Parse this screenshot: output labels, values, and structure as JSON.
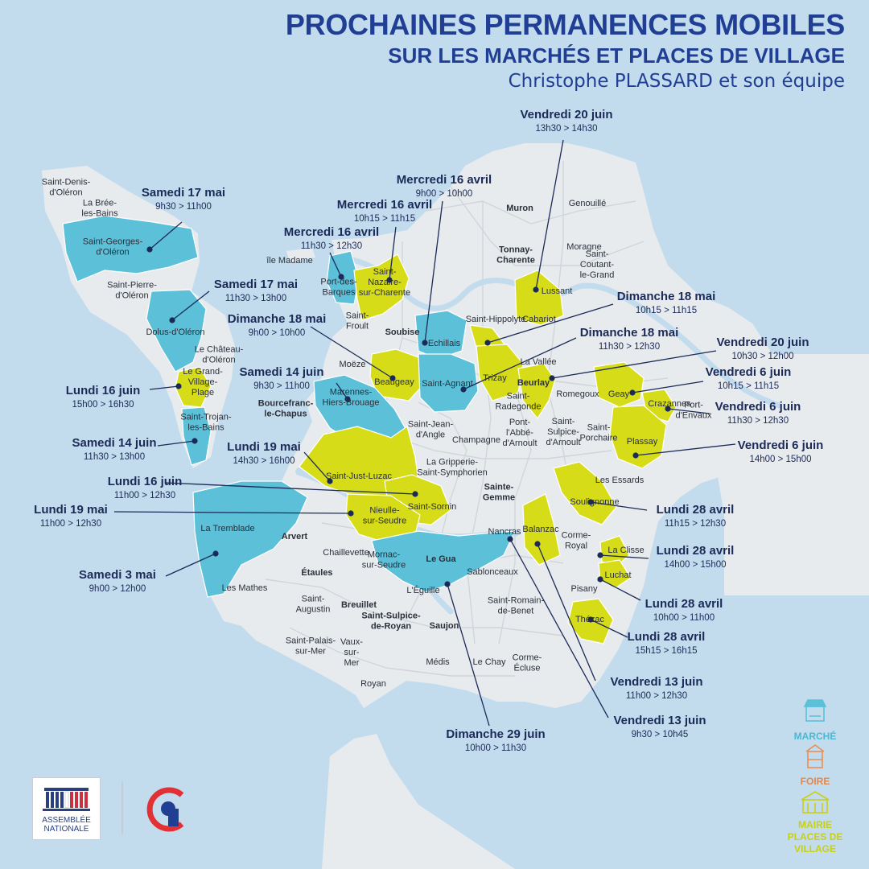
{
  "header": {
    "title": "PROCHAINES PERMANENCES MOBILES",
    "subtitle": "SUR LES MARCHÉS ET PLACES DE VILLAGE",
    "byline": "Christophe PLASSARD et son équipe"
  },
  "colors": {
    "sea": "#c3dced",
    "land": "#e8ebee",
    "commune": "#f1f2f4",
    "marche": "#5bc0d8",
    "mairie": "#d6dc18",
    "foire": "#e98e52",
    "navy": "#1b2a57",
    "river": "#c3dced"
  },
  "legend": [
    {
      "label": "MARCHÉ",
      "icon": "market-stall-icon"
    },
    {
      "label": "FOIRE",
      "icon": "fair-stand-icon"
    },
    {
      "label": "MAIRIE PLACES DE VILLAGE",
      "lines": [
        "MAIRIE",
        "PLACES DE",
        "VILLAGE"
      ],
      "icon": "town-hall-icon"
    }
  ],
  "logos": {
    "assemblee": [
      "ASSEMBLÉE",
      "NATIONALE"
    ],
    "party": "party-logo-icon"
  },
  "places": [
    {
      "lines": [
        "Saint-Denis-",
        "d'Oléron"
      ]
    },
    {
      "lines": [
        "La Brée-",
        "les-Bains"
      ]
    },
    {
      "lines": [
        "Saint-Georges-",
        "d'Oléron"
      ]
    },
    {
      "lines": [
        "Saint-Pierre-",
        "d'Oléron"
      ]
    },
    {
      "lines": [
        "Dolus-d'Oléron"
      ]
    },
    {
      "lines": [
        "Le Château-",
        "d'Oléron"
      ]
    },
    {
      "lines": [
        "Le Grand-",
        "Village-",
        "Plage"
      ]
    },
    {
      "lines": [
        "Saint-Trojan-",
        "les-Bains"
      ]
    },
    {
      "lines": [
        "île Madame"
      ]
    },
    {
      "lines": [
        "Port-des-",
        "Barques"
      ]
    },
    {
      "lines": [
        "Saint-",
        "Nazaire-",
        "sur-Charente"
      ]
    },
    {
      "lines": [
        "Saint-",
        "Froult"
      ]
    },
    {
      "lines": [
        "Soubise"
      ]
    },
    {
      "lines": [
        "Moëze"
      ]
    },
    {
      "lines": [
        "Beaugeay"
      ]
    },
    {
      "lines": [
        "Echillais"
      ]
    },
    {
      "lines": [
        "Saint-Agnant"
      ]
    },
    {
      "lines": [
        "Muron"
      ]
    },
    {
      "lines": [
        "Genouillé"
      ]
    },
    {
      "lines": [
        "Tonnay-",
        "Charente"
      ]
    },
    {
      "lines": [
        "Moragne"
      ]
    },
    {
      "lines": [
        "Saint-",
        "Coutant-",
        "le-Grand"
      ]
    },
    {
      "lines": [
        "Lussant"
      ]
    },
    {
      "lines": [
        "Saint-Hippolyte"
      ]
    },
    {
      "lines": [
        "Cabariot"
      ]
    },
    {
      "lines": [
        "Trizay"
      ]
    },
    {
      "lines": [
        "La Vallée"
      ]
    },
    {
      "lines": [
        "Beurlay"
      ]
    },
    {
      "lines": [
        "Romegoux"
      ]
    },
    {
      "lines": [
        "Geay"
      ]
    },
    {
      "lines": [
        "Crazannes"
      ]
    },
    {
      "lines": [
        "Port-",
        "d'Envaux"
      ]
    },
    {
      "lines": [
        "Plassay"
      ]
    },
    {
      "lines": [
        "Saint-",
        "Porchaire"
      ]
    },
    {
      "lines": [
        "Saint-",
        "Radegonde"
      ]
    },
    {
      "lines": [
        "Bourcefranc-",
        "le-Chapus"
      ]
    },
    {
      "lines": [
        "Marennes-",
        "Hiers-Brouage"
      ]
    },
    {
      "lines": [
        "Saint-Jean-",
        "d'Angle"
      ]
    },
    {
      "lines": [
        "Champagne"
      ]
    },
    {
      "lines": [
        "Pont-",
        "l'Abbé-",
        "d'Arnoult"
      ]
    },
    {
      "lines": [
        "Saint-",
        "Sulpice-",
        "d'Arnoult"
      ]
    },
    {
      "lines": [
        "Les Essards"
      ]
    },
    {
      "lines": [
        "Saint-Just-Luzac"
      ]
    },
    {
      "lines": [
        "La Gripperie-",
        "Saint-Symphorien"
      ]
    },
    {
      "lines": [
        "Saint-Sornin"
      ]
    },
    {
      "lines": [
        "Sainte-",
        "Gemme"
      ]
    },
    {
      "lines": [
        "Soulignonne"
      ]
    },
    {
      "lines": [
        "Nieulle-",
        "sur-Seudre"
      ]
    },
    {
      "lines": [
        "La Tremblade"
      ]
    },
    {
      "lines": [
        "Arvert"
      ]
    },
    {
      "lines": [
        "Nancras"
      ]
    },
    {
      "lines": [
        "Balanzac"
      ]
    },
    {
      "lines": [
        "Corme-",
        "Royal"
      ]
    },
    {
      "lines": [
        "La Clisse"
      ]
    },
    {
      "lines": [
        "Luchat"
      ]
    },
    {
      "lines": [
        "Pisany"
      ]
    },
    {
      "lines": [
        "Thézac"
      ]
    },
    {
      "lines": [
        "Chaillevette"
      ]
    },
    {
      "lines": [
        "Étaules"
      ]
    },
    {
      "lines": [
        "Le Gua"
      ]
    },
    {
      "lines": [
        "Sablonceaux"
      ]
    },
    {
      "lines": [
        "Mornac-",
        "sur-Seudre"
      ]
    },
    {
      "lines": [
        "L'Éguille"
      ]
    },
    {
      "lines": [
        "Les Mathes"
      ]
    },
    {
      "lines": [
        "Saint-",
        "Augustin"
      ]
    },
    {
      "lines": [
        "Breuillet"
      ]
    },
    {
      "lines": [
        "Saint-Sulpice-",
        "de-Royan"
      ]
    },
    {
      "lines": [
        "Saujon"
      ]
    },
    {
      "lines": [
        "Saint-Romain-",
        "de-Benet"
      ]
    },
    {
      "lines": [
        "Saint-Palais-",
        "sur-Mer"
      ]
    },
    {
      "lines": [
        "Vaux-",
        "sur-",
        "Mer"
      ]
    },
    {
      "lines": [
        "Royan"
      ]
    },
    {
      "lines": [
        "Médis"
      ]
    },
    {
      "lines": [
        "Le Chay"
      ]
    },
    {
      "lines": [
        "Corme-",
        "Écluse"
      ]
    }
  ],
  "events": [
    {
      "day": "Samedi 17 mai",
      "time": "9h30 > 11h00"
    },
    {
      "day": "Samedi 17 mai",
      "time": "11h30 > 13h00"
    },
    {
      "day": "Lundi 16 juin",
      "time": "15h00 > 16h30"
    },
    {
      "day": "Samedi 14 juin",
      "time": "11h30 > 13h00"
    },
    {
      "day": "Lundi 16 juin",
      "time": "11h00 > 12h30"
    },
    {
      "day": "Lundi 19 mai",
      "time": "11h00 > 12h30"
    },
    {
      "day": "Samedi 3 mai",
      "time": "9h00 > 12h00"
    },
    {
      "day": "Mercredi 16 avril",
      "time": "11h30 > 12h30"
    },
    {
      "day": "Mercredi 16 avril",
      "time": "10h15 > 11h15"
    },
    {
      "day": "Mercredi 16 avril",
      "time": "9h00 > 10h00"
    },
    {
      "day": "Dimanche 18 mai",
      "time": "9h00 > 10h00"
    },
    {
      "day": "Samedi 14 juin",
      "time": "9h30 > 11h00"
    },
    {
      "day": "Lundi 19 mai",
      "time": "14h30 > 16h00"
    },
    {
      "day": "Vendredi 20 juin",
      "time": "13h30 > 14h30"
    },
    {
      "day": "Dimanche 18 mai",
      "time": "10h15 > 11h15"
    },
    {
      "day": "Dimanche 18 mai",
      "time": "11h30 > 12h30"
    },
    {
      "day": "Vendredi 20 juin",
      "time": "10h30 > 12h00"
    },
    {
      "day": "Vendredi 6 juin",
      "time": "10h15 > 11h15"
    },
    {
      "day": "Vendredi 6 juin",
      "time": "11h30 > 12h30"
    },
    {
      "day": "Vendredi 6 juin",
      "time": "14h00 > 15h00"
    },
    {
      "day": "Lundi 28 avril",
      "time": "11h15 > 12h30"
    },
    {
      "day": "Lundi 28 avril",
      "time": "14h00 > 15h00"
    },
    {
      "day": "Lundi 28 avril",
      "time": "10h00 > 11h00"
    },
    {
      "day": "Lundi 28 avril",
      "time": "15h15 > 16h15"
    },
    {
      "day": "Vendredi 13 juin",
      "time": "11h00 > 12h30"
    },
    {
      "day": "Vendredi 13 juin",
      "time": "9h30 > 10h45"
    },
    {
      "day": "Dimanche 29 juin",
      "time": "10h00 > 11h30"
    }
  ]
}
